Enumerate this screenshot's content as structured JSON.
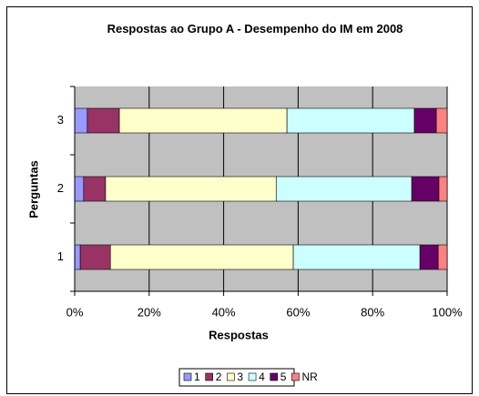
{
  "chart_data": {
    "type": "stacked-bar-horizontal",
    "title": "Respostas ao Grupo A - Desempenho do IM em 2008",
    "x_label": "Respostas",
    "y_label": "Perguntas",
    "categories": [
      "1",
      "2",
      "3"
    ],
    "series": [
      {
        "name": "1",
        "color": "#9999ff",
        "values": [
          1.5,
          2.4,
          3.4
        ]
      },
      {
        "name": "2",
        "color": "#993366",
        "values": [
          8.1,
          5.9,
          8.6
        ]
      },
      {
        "name": "3",
        "color": "#ffffcc",
        "values": [
          49.1,
          45.8,
          45.0
        ]
      },
      {
        "name": "4",
        "color": "#ccffff",
        "values": [
          34.0,
          36.4,
          34.2
        ]
      },
      {
        "name": "5",
        "color": "#660066",
        "values": [
          4.9,
          7.3,
          5.9
        ]
      },
      {
        "name": "NR",
        "color": "#ff8080",
        "values": [
          2.4,
          2.2,
          2.9
        ]
      }
    ],
    "xlim": [
      0,
      100
    ],
    "xticks": [
      {
        "value": 0,
        "label": "0%"
      },
      {
        "value": 20,
        "label": "20%"
      },
      {
        "value": 40,
        "label": "40%"
      },
      {
        "value": 60,
        "label": "60%"
      },
      {
        "value": 80,
        "label": "80%"
      },
      {
        "value": 100,
        "label": "100%"
      }
    ],
    "grid": true,
    "legend": "bottom",
    "plot_background": "#c0c0c0"
  }
}
